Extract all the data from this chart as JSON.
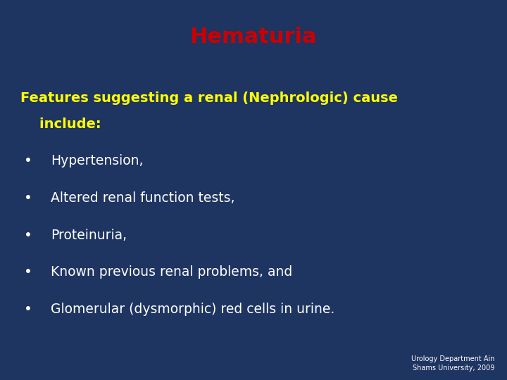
{
  "title": "Hematuria",
  "title_color": "#cc0000",
  "title_fontsize": 22,
  "title_bold": true,
  "background_color": "#1e3461",
  "heading_line1": "Features suggesting a renal (Nephrologic) cause",
  "heading_line2": "    include:",
  "heading_color": "#ffff00",
  "heading_fontsize": 14,
  "heading_bold": true,
  "bullet_items": [
    "Hypertension,",
    "Altered renal function tests,",
    "Proteinuria,",
    "Known previous renal problems, and",
    "Glomerular (dysmorphic) red cells in urine."
  ],
  "bullet_color": "#ffffff",
  "bullet_fontsize": 13.5,
  "footer_text": "Urology Department Ain\nShams University, 2009",
  "footer_color": "#ffffff",
  "footer_fontsize": 7
}
